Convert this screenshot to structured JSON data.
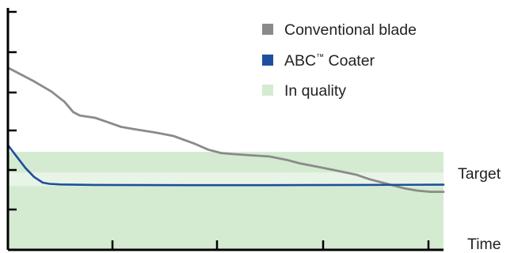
{
  "chart_data": {
    "type": "line",
    "title": "",
    "xlabel": "Time",
    "ylabel": "",
    "target_label": "Target",
    "xlim": [
      0,
      100
    ],
    "ylim": [
      0,
      100
    ],
    "quality_band": {
      "label": "In quality",
      "y_low": 0,
      "y_high": 43,
      "color": "#d4ebd1"
    },
    "target_value": 31,
    "series": [
      {
        "name": "Conventional blade",
        "mark": "",
        "color": "#8a8a8a",
        "x": [
          0,
          3,
          6,
          10,
          13,
          15,
          16.5,
          20,
          23,
          26,
          29,
          34,
          38,
          43,
          46,
          49,
          52,
          56,
          60,
          64,
          67,
          71,
          75,
          80,
          83,
          86,
          88,
          91,
          94,
          97,
          100
        ],
        "y": [
          80,
          77,
          74,
          69.5,
          65,
          60.5,
          59,
          58,
          56,
          54,
          53,
          51.5,
          50,
          46.5,
          44,
          42.5,
          42,
          41.5,
          41,
          39.5,
          38,
          36.5,
          35,
          33,
          31,
          29.5,
          28.5,
          27,
          26,
          25.5,
          25.5
        ]
      },
      {
        "name": "ABC",
        "mark": "™",
        "suffix": " Coater",
        "color": "#1d4f9e",
        "x": [
          0,
          2,
          4,
          6,
          8,
          9.5,
          12,
          20,
          40,
          60,
          80,
          100
        ],
        "y": [
          46,
          41,
          36,
          32,
          29.5,
          29,
          28.7,
          28.5,
          28.4,
          28.4,
          28.5,
          28.6
        ]
      }
    ],
    "legend_position": "top-right",
    "grid": false
  }
}
